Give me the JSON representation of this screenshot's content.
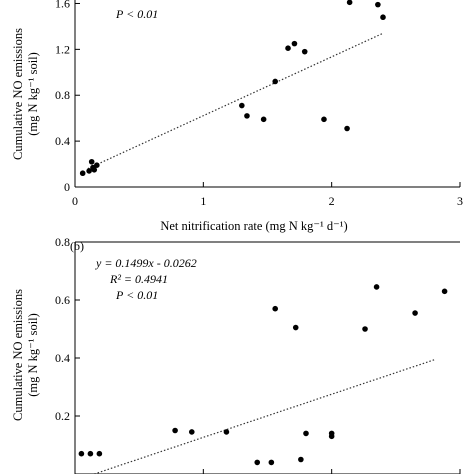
{
  "chart_data": [
    {
      "type": "scatter",
      "panel_label": "",
      "title": "",
      "xlabel": "Net nitrification rate (mg N kg⁻¹ d⁻¹)",
      "ylabel_line1": "Cumulative NO emissions",
      "ylabel_line2": "(mg N kg⁻¹ soil)",
      "xlim": [
        0,
        3
      ],
      "ylim": [
        0,
        1.7
      ],
      "xticks": [
        0,
        1,
        2,
        3
      ],
      "yticks": [
        0,
        0.4,
        0.8,
        1.2,
        1.6
      ],
      "xtick_labels": [
        "0",
        "1",
        "2",
        "3"
      ],
      "ytick_labels": [
        "0",
        "0.4",
        "0.8",
        "1.2",
        "1.6"
      ],
      "annotations": {
        "p": "P < 0.01"
      },
      "points": [
        {
          "x": 0.06,
          "y": 0.12
        },
        {
          "x": 0.11,
          "y": 0.14
        },
        {
          "x": 0.13,
          "y": 0.22
        },
        {
          "x": 0.14,
          "y": 0.17
        },
        {
          "x": 0.15,
          "y": 0.15
        },
        {
          "x": 0.17,
          "y": 0.19
        },
        {
          "x": 1.3,
          "y": 0.71
        },
        {
          "x": 1.34,
          "y": 0.62
        },
        {
          "x": 1.47,
          "y": 0.59
        },
        {
          "x": 1.56,
          "y": 0.92
        },
        {
          "x": 1.66,
          "y": 1.21
        },
        {
          "x": 1.71,
          "y": 1.25
        },
        {
          "x": 1.79,
          "y": 1.18
        },
        {
          "x": 1.94,
          "y": 0.59
        },
        {
          "x": 2.12,
          "y": 0.51
        },
        {
          "x": 2.14,
          "y": 1.61
        },
        {
          "x": 2.36,
          "y": 1.59
        },
        {
          "x": 2.4,
          "y": 1.48
        }
      ],
      "trendline": {
        "x": [
          0.1,
          2.4
        ],
        "y": [
          0.16,
          1.34
        ]
      }
    },
    {
      "type": "scatter",
      "panel_label": "(b)",
      "title": "",
      "xlabel": "",
      "ylabel_line1": "Cumulative NO emissions",
      "ylabel_line2": "(mg N kg⁻¹ soil)",
      "xlim": [
        0,
        3
      ],
      "ylim": [
        0,
        0.8
      ],
      "xticks": [
        0,
        1,
        2,
        3
      ],
      "yticks": [
        0.2,
        0.4,
        0.6,
        0.8
      ],
      "xtick_labels": [],
      "ytick_labels": [
        "0.2",
        "0.4",
        "0.6",
        "0.8"
      ],
      "annotations": {
        "equation": "y = 0.1499x - 0.0262",
        "r2": "R² = 0.4941",
        "p": "P < 0.01"
      },
      "points": [
        {
          "x": 0.05,
          "y": 0.07
        },
        {
          "x": 0.12,
          "y": 0.07
        },
        {
          "x": 0.19,
          "y": 0.07
        },
        {
          "x": 0.78,
          "y": 0.15
        },
        {
          "x": 0.91,
          "y": 0.145
        },
        {
          "x": 1.18,
          "y": 0.145
        },
        {
          "x": 1.42,
          "y": 0.04
        },
        {
          "x": 1.53,
          "y": 0.04
        },
        {
          "x": 1.56,
          "y": 0.57
        },
        {
          "x": 1.72,
          "y": 0.505
        },
        {
          "x": 1.76,
          "y": 0.05
        },
        {
          "x": 1.8,
          "y": 0.14
        },
        {
          "x": 2.0,
          "y": 0.14
        },
        {
          "x": 2.0,
          "y": 0.13
        },
        {
          "x": 2.26,
          "y": 0.5
        },
        {
          "x": 2.35,
          "y": 0.645
        },
        {
          "x": 2.65,
          "y": 0.555
        },
        {
          "x": 2.88,
          "y": 0.63
        }
      ],
      "trendline": {
        "x": [
          0.15,
          2.8
        ],
        "y": [
          0.0,
          0.394
        ]
      }
    }
  ]
}
